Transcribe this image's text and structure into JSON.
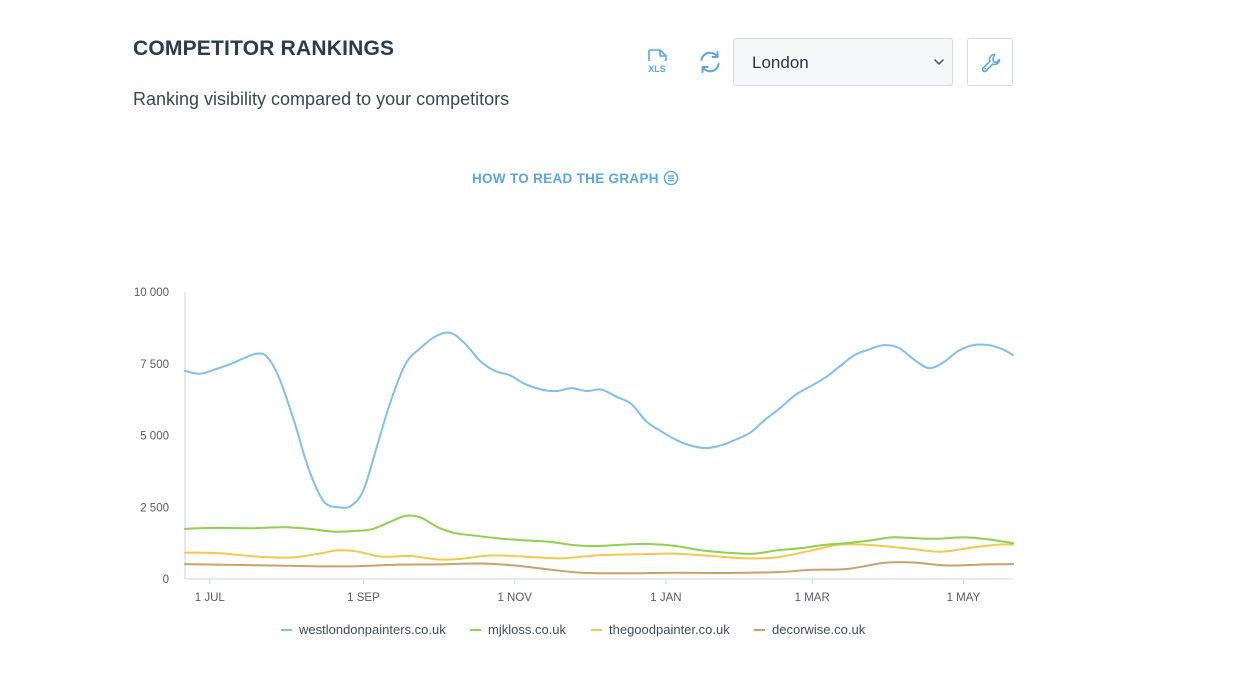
{
  "header": {
    "title": "COMPETITOR RANKINGS",
    "subtitle": "Ranking visibility compared to your competitors"
  },
  "toolbar": {
    "xls_icon_label": "XLS",
    "location_select": {
      "value": "London"
    }
  },
  "help_link": {
    "label": "HOW TO READ THE GRAPH"
  },
  "colors": {
    "accent": "#5aa7e3",
    "axis": "#c9d6e6"
  },
  "chart_data": {
    "type": "line",
    "xlabel": "",
    "ylabel": "",
    "ylim": [
      0,
      10000
    ],
    "xlim": [
      "2022-06-21",
      "2023-05-21"
    ],
    "y_ticks": [
      {
        "value": 0,
        "label": "0"
      },
      {
        "value": 2500,
        "label": "2 500"
      },
      {
        "value": 5000,
        "label": "5 000"
      },
      {
        "value": 7500,
        "label": "7 500"
      },
      {
        "value": 10000,
        "label": "10 000"
      }
    ],
    "x_ticks": [
      {
        "date": "2022-07-01",
        "label": "1 JUL"
      },
      {
        "date": "2022-09-01",
        "label": "1 SEP"
      },
      {
        "date": "2022-11-01",
        "label": "1 NOV"
      },
      {
        "date": "2023-01-01",
        "label": "1 JAN"
      },
      {
        "date": "2023-03-01",
        "label": "1 MAR"
      },
      {
        "date": "2023-05-01",
        "label": "1 MAY"
      }
    ],
    "legend_position": "bottom",
    "grid": false,
    "series": [
      {
        "name": "westlondonpainters.co.uk",
        "color": "#7fbff2",
        "points": [
          [
            "2022-06-21",
            7250
          ],
          [
            "2022-06-27",
            7150
          ],
          [
            "2022-07-03",
            7300
          ],
          [
            "2022-07-09",
            7480
          ],
          [
            "2022-07-15",
            7700
          ],
          [
            "2022-07-20",
            7850
          ],
          [
            "2022-07-24",
            7750
          ],
          [
            "2022-07-29",
            7000
          ],
          [
            "2022-08-04",
            5500
          ],
          [
            "2022-08-10",
            3800
          ],
          [
            "2022-08-16",
            2700
          ],
          [
            "2022-08-22",
            2500
          ],
          [
            "2022-08-27",
            2550
          ],
          [
            "2022-09-01",
            3100
          ],
          [
            "2022-09-06",
            4500
          ],
          [
            "2022-09-12",
            6200
          ],
          [
            "2022-09-18",
            7500
          ],
          [
            "2022-09-24",
            8050
          ],
          [
            "2022-09-30",
            8450
          ],
          [
            "2022-10-06",
            8580
          ],
          [
            "2022-10-12",
            8200
          ],
          [
            "2022-10-18",
            7600
          ],
          [
            "2022-10-24",
            7250
          ],
          [
            "2022-10-30",
            7100
          ],
          [
            "2022-11-05",
            6800
          ],
          [
            "2022-11-12",
            6600
          ],
          [
            "2022-11-18",
            6550
          ],
          [
            "2022-11-24",
            6650
          ],
          [
            "2022-11-30",
            6550
          ],
          [
            "2022-12-06",
            6600
          ],
          [
            "2022-12-12",
            6350
          ],
          [
            "2022-12-18",
            6100
          ],
          [
            "2022-12-24",
            5500
          ],
          [
            "2022-12-30",
            5150
          ],
          [
            "2023-01-05",
            4850
          ],
          [
            "2023-01-11",
            4650
          ],
          [
            "2023-01-17",
            4560
          ],
          [
            "2023-01-23",
            4650
          ],
          [
            "2023-01-29",
            4850
          ],
          [
            "2023-02-04",
            5100
          ],
          [
            "2023-02-10",
            5550
          ],
          [
            "2023-02-16",
            5950
          ],
          [
            "2023-02-22",
            6400
          ],
          [
            "2023-02-28",
            6700
          ],
          [
            "2023-03-06",
            7000
          ],
          [
            "2023-03-12",
            7400
          ],
          [
            "2023-03-18",
            7800
          ],
          [
            "2023-03-24",
            8000
          ],
          [
            "2023-03-30",
            8150
          ],
          [
            "2023-04-05",
            8050
          ],
          [
            "2023-04-11",
            7650
          ],
          [
            "2023-04-17",
            7350
          ],
          [
            "2023-04-23",
            7550
          ],
          [
            "2023-04-29",
            7950
          ],
          [
            "2023-05-05",
            8150
          ],
          [
            "2023-05-11",
            8150
          ],
          [
            "2023-05-17",
            8000
          ],
          [
            "2023-05-21",
            7800
          ]
        ]
      },
      {
        "name": "mjkloss.co.uk",
        "color": "#8fd14f",
        "points": [
          [
            "2022-06-21",
            1750
          ],
          [
            "2022-07-03",
            1780
          ],
          [
            "2022-07-17",
            1770
          ],
          [
            "2022-07-31",
            1800
          ],
          [
            "2022-08-10",
            1750
          ],
          [
            "2022-08-20",
            1650
          ],
          [
            "2022-08-30",
            1680
          ],
          [
            "2022-09-05",
            1750
          ],
          [
            "2022-09-12",
            2000
          ],
          [
            "2022-09-18",
            2200
          ],
          [
            "2022-09-24",
            2150
          ],
          [
            "2022-10-01",
            1800
          ],
          [
            "2022-10-08",
            1600
          ],
          [
            "2022-10-15",
            1520
          ],
          [
            "2022-10-25",
            1420
          ],
          [
            "2022-11-05",
            1350
          ],
          [
            "2022-11-15",
            1300
          ],
          [
            "2022-11-25",
            1180
          ],
          [
            "2022-12-05",
            1150
          ],
          [
            "2022-12-15",
            1200
          ],
          [
            "2022-12-25",
            1220
          ],
          [
            "2023-01-05",
            1150
          ],
          [
            "2023-01-15",
            1000
          ],
          [
            "2023-01-25",
            920
          ],
          [
            "2023-02-05",
            880
          ],
          [
            "2023-02-15",
            1000
          ],
          [
            "2023-02-25",
            1080
          ],
          [
            "2023-03-05",
            1180
          ],
          [
            "2023-03-15",
            1250
          ],
          [
            "2023-03-25",
            1350
          ],
          [
            "2023-04-02",
            1450
          ],
          [
            "2023-04-10",
            1430
          ],
          [
            "2023-04-20",
            1400
          ],
          [
            "2023-05-01",
            1450
          ],
          [
            "2023-05-11",
            1380
          ],
          [
            "2023-05-21",
            1250
          ]
        ]
      },
      {
        "name": "thegoodpainter.co.uk",
        "color": "#f2c94c",
        "points": [
          [
            "2022-06-21",
            920
          ],
          [
            "2022-07-05",
            900
          ],
          [
            "2022-07-20",
            780
          ],
          [
            "2022-08-03",
            750
          ],
          [
            "2022-08-15",
            900
          ],
          [
            "2022-08-22",
            1000
          ],
          [
            "2022-08-30",
            950
          ],
          [
            "2022-09-08",
            780
          ],
          [
            "2022-09-20",
            800
          ],
          [
            "2022-10-01",
            680
          ],
          [
            "2022-10-10",
            700
          ],
          [
            "2022-10-22",
            820
          ],
          [
            "2022-11-05",
            780
          ],
          [
            "2022-11-20",
            720
          ],
          [
            "2022-12-05",
            830
          ],
          [
            "2022-12-20",
            860
          ],
          [
            "2023-01-05",
            880
          ],
          [
            "2023-01-20",
            800
          ],
          [
            "2023-02-01",
            720
          ],
          [
            "2023-02-15",
            760
          ],
          [
            "2023-03-01",
            1000
          ],
          [
            "2023-03-12",
            1200
          ],
          [
            "2023-03-25",
            1180
          ],
          [
            "2023-04-10",
            1050
          ],
          [
            "2023-04-22",
            950
          ],
          [
            "2023-05-05",
            1100
          ],
          [
            "2023-05-15",
            1200
          ],
          [
            "2023-05-21",
            1200
          ]
        ]
      },
      {
        "name": "decorwise.co.uk",
        "color": "#c9a06e",
        "points": [
          [
            "2022-06-21",
            520
          ],
          [
            "2022-07-10",
            490
          ],
          [
            "2022-08-01",
            460
          ],
          [
            "2022-08-25",
            440
          ],
          [
            "2022-09-15",
            500
          ],
          [
            "2022-10-01",
            510
          ],
          [
            "2022-10-18",
            540
          ],
          [
            "2022-11-01",
            470
          ],
          [
            "2022-11-15",
            330
          ],
          [
            "2022-11-28",
            220
          ],
          [
            "2022-12-15",
            200
          ],
          [
            "2023-01-05",
            220
          ],
          [
            "2023-01-25",
            210
          ],
          [
            "2023-02-15",
            240
          ],
          [
            "2023-03-01",
            320
          ],
          [
            "2023-03-15",
            350
          ],
          [
            "2023-03-30",
            560
          ],
          [
            "2023-04-10",
            580
          ],
          [
            "2023-04-25",
            470
          ],
          [
            "2023-05-10",
            510
          ],
          [
            "2023-05-21",
            520
          ]
        ]
      }
    ]
  }
}
